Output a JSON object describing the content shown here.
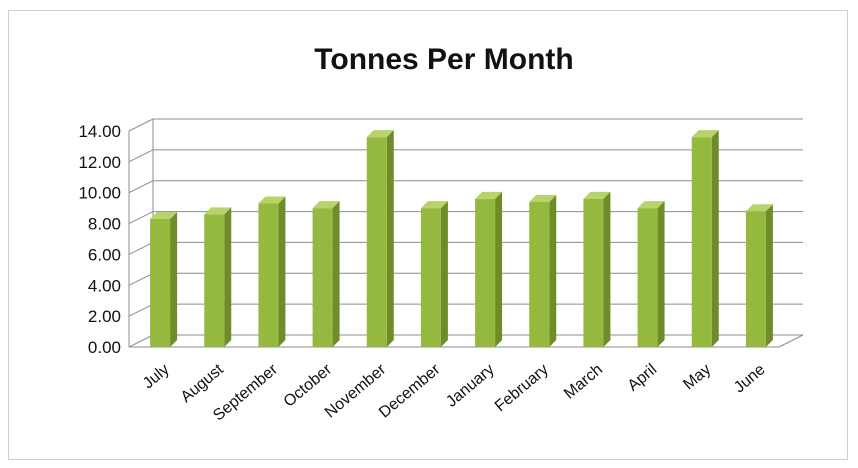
{
  "chart_data": {
    "type": "bar",
    "title": "Tonnes Per Month",
    "xlabel": "",
    "ylabel": "",
    "categories": [
      "July",
      "August",
      "September",
      "October",
      "November",
      "December",
      "January",
      "February",
      "March",
      "April",
      "May",
      "June"
    ],
    "values": [
      8.3,
      8.6,
      9.3,
      9.0,
      13.6,
      9.0,
      9.6,
      9.4,
      9.6,
      9.0,
      13.6,
      8.8
    ],
    "ylim": [
      0,
      14
    ],
    "yticks": [
      "0.00",
      "2.00",
      "4.00",
      "6.00",
      "8.00",
      "10.00",
      "12.00",
      "14.00"
    ],
    "grid": true,
    "legend": "none",
    "style": "3d-column"
  },
  "colors": {
    "bar_front": "#95b93f",
    "bar_side": "#6e8c28",
    "bar_top": "#b7d36a",
    "grid": "#8c8c8c"
  }
}
